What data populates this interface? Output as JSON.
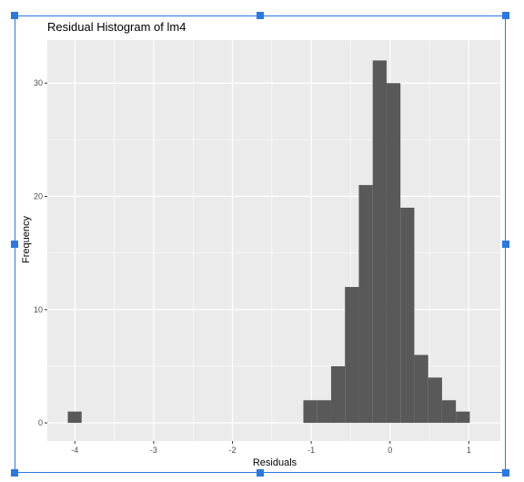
{
  "chart_data": {
    "type": "bar",
    "title": "Residual Histogram of lm4",
    "xlabel": "Residuals",
    "ylabel": "Frequency",
    "xlim": [
      -4.35,
      1.4
    ],
    "ylim": [
      -1.6,
      33.8
    ],
    "x_ticks": [
      "-4",
      "-3",
      "-2",
      "-1",
      "0",
      "1"
    ],
    "y_ticks": [
      "0",
      "10",
      "20",
      "30"
    ],
    "bin_width": 0.176,
    "bins": [
      {
        "x0": -4.09,
        "x1": -3.914,
        "count": 1
      },
      {
        "x0": -1.1,
        "x1": -0.924,
        "count": 2
      },
      {
        "x0": -0.924,
        "x1": -0.748,
        "count": 2
      },
      {
        "x0": -0.748,
        "x1": -0.572,
        "count": 5
      },
      {
        "x0": -0.572,
        "x1": -0.396,
        "count": 12
      },
      {
        "x0": -0.396,
        "x1": -0.22,
        "count": 21
      },
      {
        "x0": -0.22,
        "x1": -0.044,
        "count": 32
      },
      {
        "x0": -0.044,
        "x1": 0.132,
        "count": 30
      },
      {
        "x0": 0.132,
        "x1": 0.308,
        "count": 19
      },
      {
        "x0": 0.308,
        "x1": 0.484,
        "count": 6
      },
      {
        "x0": 0.484,
        "x1": 0.66,
        "count": 4
      },
      {
        "x0": 0.66,
        "x1": 0.836,
        "count": 2
      },
      {
        "x0": 0.836,
        "x1": 1.012,
        "count": 1
      }
    ],
    "grid": true,
    "colors": {
      "bar": "#595959",
      "panel": "#ebebeb",
      "grid": "#ffffff",
      "selection": "#2b78e4"
    }
  }
}
